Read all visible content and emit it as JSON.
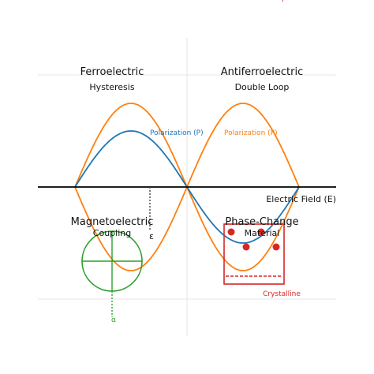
{
  "colors": {
    "axis": "#000000",
    "grid": "#e6e6e6",
    "blue": "#1f77b4",
    "orange": "#ff7f0e",
    "green": "#2ca02c",
    "red": "#d62728",
    "text": "#111111"
  },
  "quadrants": {
    "ferroelectric": {
      "title": "Ferroelectric",
      "subtitle": "Hysteresis"
    },
    "antiferroelectric": {
      "title": "Antiferroelectric",
      "subtitle": "Double Loop"
    },
    "magnetoelectric": {
      "title": "Magnetoelectric",
      "subtitle": "Coupling"
    },
    "phase_change": {
      "title": "Phase-Change",
      "subtitle": "Material"
    }
  },
  "labels": {
    "polarization_left": "Polarization (P)",
    "polarization_right": "Polarization (P)",
    "electric_field": "Electric Field (E)",
    "epsilon": "ε",
    "alpha": "α",
    "crystalline": "Crystalline",
    "corner_mark": "P"
  }
}
